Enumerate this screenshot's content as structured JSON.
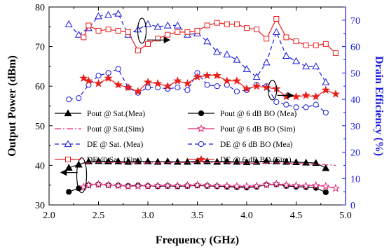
{
  "chart_data": {
    "type": "line",
    "title": "",
    "xlabel": "Frequency (GHz)",
    "ylabel": "Output Power (dBm)",
    "y2label": "Drain Efficiency (%)",
    "xlim": [
      2.0,
      5.0
    ],
    "ylim": [
      30,
      80
    ],
    "y2lim": [
      0,
      75
    ],
    "xticks": [
      "2.0",
      "2.5",
      "3.0",
      "3.5",
      "4.0",
      "4.5",
      "5.0"
    ],
    "yticks": [
      "30",
      "40",
      "50",
      "60",
      "70",
      "80"
    ],
    "y2ticks": [
      "0",
      "10",
      "20",
      "30",
      "40",
      "50",
      "60",
      "70"
    ],
    "grid": false,
    "legend_position": "bottom-center",
    "colors": {
      "left_axis": "#000000",
      "right_axis": "#1a1adc",
      "red": "#e8201b",
      "pink": "#e0287a",
      "blue": "#1a1adc"
    },
    "series": [
      {
        "name": "Pout @ Sat.(Mea)",
        "axis": "left",
        "color": "#000000",
        "marker": "triangle-filled",
        "dash": "solid",
        "x": [
          2.2,
          2.3,
          2.4,
          2.5,
          2.6,
          2.7,
          2.8,
          2.9,
          3.0,
          3.1,
          3.2,
          3.3,
          3.4,
          3.5,
          3.6,
          3.7,
          3.8,
          3.9,
          4.0,
          4.1,
          4.2,
          4.3,
          4.4,
          4.5,
          4.6,
          4.7,
          4.8
        ],
        "y": [
          39.4,
          40.2,
          41.0,
          41.1,
          41.0,
          41.0,
          40.9,
          41.0,
          41.0,
          40.9,
          41.0,
          40.9,
          40.9,
          41.0,
          41.0,
          40.9,
          41.0,
          40.9,
          40.8,
          40.9,
          41.1,
          41.0,
          40.9,
          40.8,
          40.7,
          40.6,
          39.3
        ]
      },
      {
        "name": "Pout @ 6 dB BO (Mea)",
        "axis": "left",
        "color": "#000000",
        "marker": "circle-filled",
        "dash": "solid",
        "x": [
          2.2,
          2.3,
          2.4,
          2.5,
          2.6,
          2.7,
          2.8,
          2.9,
          3.0,
          3.1,
          3.2,
          3.3,
          3.4,
          3.5,
          3.6,
          3.7,
          3.8,
          3.9,
          4.0,
          4.1,
          4.2,
          4.3,
          4.4,
          4.5,
          4.6,
          4.7,
          4.8
        ],
        "y": [
          33.3,
          34.2,
          35.0,
          35.2,
          35.0,
          34.9,
          34.8,
          34.9,
          34.8,
          34.7,
          34.8,
          34.7,
          34.8,
          34.9,
          34.8,
          34.7,
          34.6,
          34.5,
          34.4,
          34.6,
          35.1,
          35.2,
          34.8,
          34.6,
          34.5,
          34.3,
          33.2
        ]
      },
      {
        "name": "Pout @ Sat.(Sim)",
        "axis": "left",
        "color": "#e0287a",
        "marker": "none",
        "dash": "dashdot",
        "x": [
          2.35,
          2.5,
          2.7,
          2.9,
          3.1,
          3.3,
          3.5,
          3.7,
          3.9,
          4.1,
          4.3,
          4.5,
          4.7,
          4.9
        ],
        "y": [
          40.5,
          40.8,
          40.7,
          40.6,
          40.6,
          40.7,
          40.8,
          40.7,
          40.6,
          40.5,
          40.6,
          40.5,
          40.3,
          40.0
        ]
      },
      {
        "name": "Pout @ 6 dB BO (Sim)",
        "axis": "left",
        "color": "#e0287a",
        "marker": "star-open",
        "dash": "solid",
        "x": [
          2.35,
          2.4,
          2.5,
          2.6,
          2.7,
          2.8,
          2.9,
          3.0,
          3.1,
          3.2,
          3.3,
          3.4,
          3.5,
          3.6,
          3.7,
          3.8,
          3.9,
          4.0,
          4.1,
          4.2,
          4.3,
          4.4,
          4.5,
          4.6,
          4.7,
          4.8,
          4.9
        ],
        "y": [
          34.5,
          35.0,
          35.2,
          35.0,
          34.9,
          34.7,
          34.8,
          34.8,
          34.8,
          34.9,
          34.8,
          34.9,
          35.0,
          34.9,
          34.8,
          34.8,
          34.7,
          34.7,
          34.8,
          35.1,
          35.3,
          35.0,
          34.9,
          34.8,
          34.9,
          34.7,
          34.2
        ]
      },
      {
        "name": "DE @ Sat. (Mea)",
        "axis": "right",
        "color": "#1a1adc",
        "marker": "triangle-open",
        "dash": "dash",
        "x": [
          2.2,
          2.3,
          2.4,
          2.5,
          2.6,
          2.7,
          2.8,
          2.9,
          3.0,
          3.1,
          3.2,
          3.3,
          3.4,
          3.5,
          3.6,
          3.7,
          3.8,
          3.9,
          4.0,
          4.1,
          4.2,
          4.3,
          4.4,
          4.5,
          4.6,
          4.7,
          4.8
        ],
        "y": [
          68.5,
          64.5,
          67.0,
          71.5,
          72.0,
          72.5,
          64.5,
          66.5,
          68.5,
          67.5,
          68.0,
          68.0,
          64.5,
          65.0,
          62.0,
          58.0,
          57.0,
          55.0,
          51.5,
          48.5,
          54.0,
          65.5,
          56.5,
          54.5,
          52.5,
          52.5,
          46.5
        ]
      },
      {
        "name": "DE @ 6 dB BO (Mea)",
        "axis": "right",
        "color": "#1a1adc",
        "marker": "circle-open",
        "dash": "dash",
        "x": [
          2.2,
          2.3,
          2.4,
          2.5,
          2.6,
          2.7,
          2.8,
          2.9,
          3.0,
          3.1,
          3.2,
          3.3,
          3.4,
          3.5,
          3.6,
          3.7,
          3.8,
          3.9,
          4.0,
          4.1,
          4.2,
          4.3,
          4.4,
          4.5,
          4.6,
          4.7,
          4.8
        ],
        "y": [
          40.0,
          40.5,
          45.5,
          49.0,
          50.0,
          51.5,
          44.5,
          42.5,
          44.5,
          44.5,
          44.0,
          44.5,
          43.5,
          50.0,
          45.5,
          45.0,
          45.5,
          43.0,
          43.5,
          45.5,
          45.0,
          39.0,
          38.0,
          37.0,
          37.0,
          38.0,
          35.0
        ]
      },
      {
        "name": "DE @ Sat. (Sim)",
        "axis": "right",
        "color": "#e8201b",
        "marker": "square-open",
        "dash": "solid",
        "x": [
          2.35,
          2.4,
          2.5,
          2.6,
          2.7,
          2.8,
          2.9,
          3.0,
          3.1,
          3.2,
          3.3,
          3.4,
          3.5,
          3.6,
          3.7,
          3.8,
          3.9,
          4.0,
          4.1,
          4.2,
          4.3,
          4.4,
          4.5,
          4.6,
          4.7,
          4.8,
          4.9
        ],
        "y": [
          63.5,
          68.0,
          66.0,
          66.5,
          66.0,
          65.5,
          58.5,
          61.0,
          63.0,
          64.5,
          65.5,
          65.5,
          66.0,
          68.0,
          69.0,
          68.5,
          68.5,
          67.0,
          66.5,
          63.0,
          70.5,
          63.5,
          62.0,
          60.5,
          60.5,
          61.0,
          57.5
        ]
      },
      {
        "name": "DE @ 6 dB BO (Sim)",
        "axis": "right",
        "color": "#e8201b",
        "marker": "star-filled",
        "dash": "solid",
        "x": [
          2.35,
          2.4,
          2.5,
          2.6,
          2.7,
          2.8,
          2.9,
          3.0,
          3.1,
          3.2,
          3.3,
          3.4,
          3.5,
          3.6,
          3.7,
          3.8,
          3.9,
          4.0,
          4.1,
          4.2,
          4.3,
          4.4,
          4.5,
          4.6,
          4.7,
          4.8,
          4.9
        ],
        "y": [
          48.0,
          47.0,
          46.0,
          48.0,
          45.5,
          44.5,
          43.0,
          46.5,
          46.0,
          45.0,
          47.0,
          46.0,
          48.5,
          49.0,
          49.0,
          47.0,
          47.0,
          44.0,
          45.0,
          44.5,
          44.0,
          41.0,
          41.0,
          41.5,
          41.0,
          43.5,
          42.0
        ]
      }
    ]
  }
}
